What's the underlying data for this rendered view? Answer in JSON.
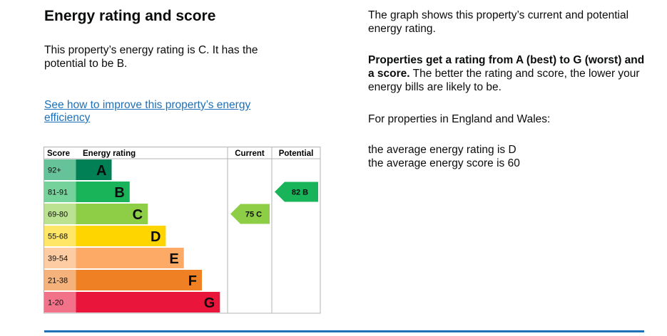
{
  "left": {
    "title": "Energy rating and score",
    "intro": "This property’s energy rating is C. It has the potential to be B.",
    "link_label": "See how to improve this property’s energy efficiency"
  },
  "right": {
    "p1": "The graph shows this property’s current and potential energy rating.",
    "p2_bold": "Properties get a rating from A (best) to G (worst) and a score.",
    "p2_rest": " The better the rating and score, the lower your energy bills are likely to be.",
    "p3": "For properties in England and Wales:",
    "p4_line1": "the average energy rating is D",
    "p4_line2": "the average energy score is 60"
  },
  "chart_data": {
    "type": "bar",
    "headers": {
      "score": "Score",
      "rating": "Energy rating",
      "current": "Current",
      "potential": "Potential"
    },
    "bands": [
      {
        "letter": "A",
        "range": "92+",
        "color": "#008054",
        "score_bg": "#66c299"
      },
      {
        "letter": "B",
        "range": "81-91",
        "color": "#19b459",
        "score_bg": "#75d29b"
      },
      {
        "letter": "C",
        "range": "69-80",
        "color": "#8dce46",
        "score_bg": "#bbe290"
      },
      {
        "letter": "D",
        "range": "55-68",
        "color": "#ffd500",
        "score_bg": "#ffe666"
      },
      {
        "letter": "E",
        "range": "39-54",
        "color": "#fcaa65",
        "score_bg": "#fdcca3"
      },
      {
        "letter": "F",
        "range": "21-38",
        "color": "#ef8023",
        "score_bg": "#f5b37b"
      },
      {
        "letter": "G",
        "range": "1-20",
        "color": "#e9153b",
        "score_bg": "#f27389"
      }
    ],
    "current": {
      "score": 75,
      "band": "C",
      "label": "75 C",
      "color": "#8dce46"
    },
    "potential": {
      "score": 82,
      "band": "B",
      "label": "82 B",
      "color": "#19b459"
    }
  }
}
